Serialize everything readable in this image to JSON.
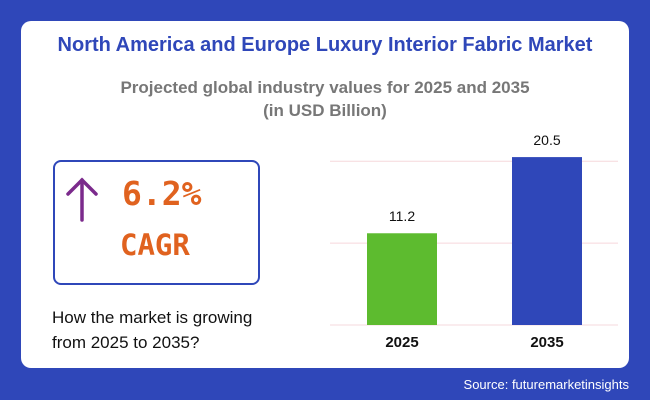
{
  "header": {
    "title": "North America and Europe Luxury Interior Fabric Market",
    "subtitle": [
      "Projected global industry values for 2025 and 2035",
      "(in USD Billion)"
    ]
  },
  "highlight": {
    "value": "6.2%",
    "label": "CAGR"
  },
  "description": [
    "How the market is growing",
    "from 2025 to 2035?"
  ],
  "chart_data": {
    "type": "bar",
    "categories": [
      "2025",
      "2035"
    ],
    "values": [
      11.2,
      20.5
    ],
    "colors": [
      "#5dbb2f",
      "#2f47b9"
    ],
    "ylim": [
      0,
      21
    ],
    "gridlines": [
      0,
      10,
      20
    ],
    "grid_color": "#f6d8dc"
  },
  "source": "Source: futuremarketinsights"
}
